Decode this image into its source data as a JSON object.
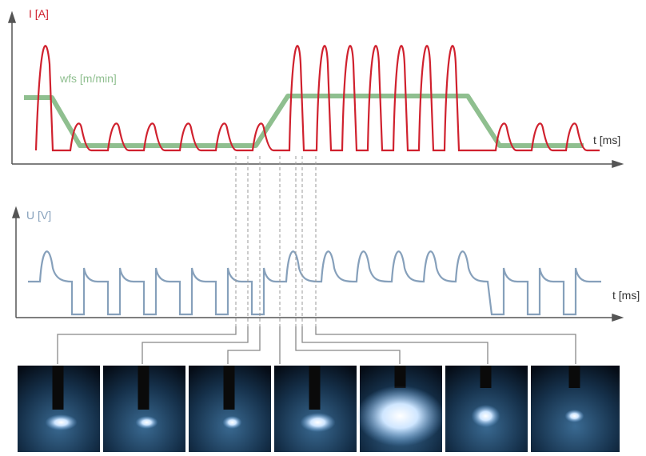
{
  "top_plot": {
    "y_label": "I [A]",
    "series_label": "wfs [m/min]",
    "x_label": "t [ms]"
  },
  "bottom_plot": {
    "y_label": "U [V]",
    "x_label": "t [ms]"
  }
}
